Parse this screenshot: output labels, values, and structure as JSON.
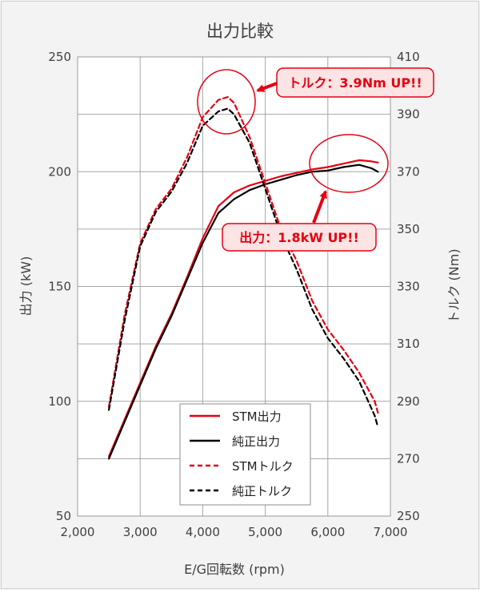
{
  "chart_data": {
    "type": "line",
    "title": "出力比較",
    "xlabel": "E/G回転数 (rpm)",
    "ylabel_left": "出力 (kW)",
    "ylabel_right": "トルク (Nm)",
    "xlim": [
      2000,
      7000
    ],
    "ylim_left": [
      50,
      250
    ],
    "ylim_right": [
      250,
      410
    ],
    "x_ticks": [
      2000,
      3000,
      4000,
      5000,
      6000,
      7000
    ],
    "x_tick_labels": [
      "2,000",
      "3,000",
      "4,000",
      "5,000",
      "6,000",
      "7,000"
    ],
    "y_left_ticks": [
      50,
      100,
      150,
      200,
      250
    ],
    "y_left_tick_labels": [
      "50",
      "100",
      "150",
      "200",
      "250"
    ],
    "y_right_ticks": [
      250,
      270,
      290,
      310,
      330,
      350,
      370,
      390,
      410
    ],
    "y_right_tick_labels": [
      "250",
      "270",
      "290",
      "310",
      "330",
      "350",
      "370",
      "390",
      "410"
    ],
    "grid": true,
    "legend_position": "bottom-center",
    "colors": {
      "stm": "#e60012",
      "stock": "#000000",
      "callout": "#e60012",
      "callout_fill": "#fde4e4"
    },
    "series": [
      {
        "name": "STM出力",
        "axis": "left",
        "style": "solid",
        "color": "#e60012",
        "x": [
          2500,
          2750,
          3000,
          3250,
          3500,
          3750,
          4000,
          4250,
          4500,
          4750,
          5000,
          5250,
          5500,
          5750,
          6000,
          6250,
          6500,
          6700,
          6800
        ],
        "values": [
          76,
          92,
          108,
          124,
          138,
          154,
          171,
          185,
          191,
          194,
          196,
          198,
          199.5,
          201,
          202,
          203.5,
          205,
          204.5,
          204
        ]
      },
      {
        "name": "純正出力",
        "axis": "left",
        "style": "solid",
        "color": "#000000",
        "x": [
          2500,
          2750,
          3000,
          3250,
          3500,
          3750,
          4000,
          4250,
          4500,
          4750,
          5000,
          5250,
          5500,
          5750,
          6000,
          6250,
          6500,
          6700,
          6800
        ],
        "values": [
          75,
          91,
          107,
          123,
          137,
          153,
          169,
          182,
          188,
          192,
          194.5,
          196.5,
          198.5,
          200,
          200.5,
          202,
          203,
          201.5,
          200
        ]
      },
      {
        "name": "STMトルク",
        "axis": "right",
        "style": "dashed",
        "color": "#e60012",
        "x": [
          2500,
          2750,
          3000,
          3250,
          3500,
          3750,
          4000,
          4250,
          4400,
          4500,
          4750,
          5000,
          5250,
          5500,
          5750,
          6000,
          6250,
          6500,
          6750,
          6800
        ],
        "values": [
          288,
          320,
          345,
          357,
          364,
          375,
          389,
          395,
          396,
          394,
          382,
          366,
          350,
          339,
          325,
          315,
          308,
          300,
          290,
          286
        ]
      },
      {
        "name": "純正トルク",
        "axis": "right",
        "style": "dashed",
        "color": "#000000",
        "x": [
          2500,
          2750,
          3000,
          3250,
          3500,
          3750,
          4000,
          4250,
          4400,
          4500,
          4750,
          5000,
          5250,
          5500,
          5750,
          6000,
          6250,
          6500,
          6750,
          6800
        ],
        "values": [
          287,
          318,
          344,
          356,
          363,
          373,
          386,
          391,
          392,
          390,
          380,
          364,
          348,
          336,
          322,
          312,
          305,
          297,
          285,
          281
        ]
      }
    ],
    "annotations": [
      {
        "text": "トルク：3.9Nm UP!!"
      },
      {
        "text": "出力：1.8kW UP!!"
      }
    ]
  }
}
